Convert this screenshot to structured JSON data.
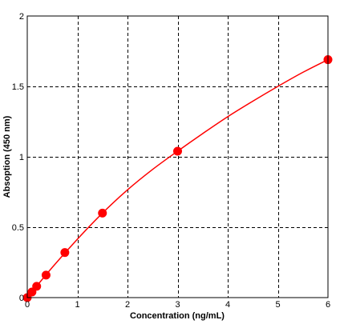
{
  "chart_data": {
    "type": "line",
    "xlabel": "Concentration (ng/mL)",
    "ylabel": "Absoption (450 nm)",
    "xlim": [
      0,
      6
    ],
    "ylim": [
      0,
      2
    ],
    "x_ticks": [
      0,
      1,
      2,
      3,
      4,
      5,
      6
    ],
    "x_tick_labels": [
      "0",
      "1",
      "2",
      "3",
      "4",
      "5",
      "6"
    ],
    "y_ticks": [
      0,
      0.5,
      1,
      1.5,
      2
    ],
    "y_tick_labels": [
      "0",
      "0.5",
      "1",
      "1.5",
      "2"
    ],
    "grid": true,
    "grid_style": "dashed",
    "series": [
      {
        "points": [
          {
            "x": 0,
            "y": 0.0
          },
          {
            "x": 0.09375,
            "y": 0.04
          },
          {
            "x": 0.1875,
            "y": 0.08
          },
          {
            "x": 0.375,
            "y": 0.16
          },
          {
            "x": 0.75,
            "y": 0.32
          },
          {
            "x": 1.5,
            "y": 0.6
          },
          {
            "x": 3,
            "y": 1.04
          },
          {
            "x": 6,
            "y": 1.69
          }
        ],
        "fit_curve": [
          {
            "x": 0,
            "y": 0.0
          },
          {
            "x": 0.5,
            "y": 0.215
          },
          {
            "x": 1,
            "y": 0.415
          },
          {
            "x": 1.5,
            "y": 0.6
          },
          {
            "x": 2,
            "y": 0.765
          },
          {
            "x": 2.5,
            "y": 0.91
          },
          {
            "x": 3,
            "y": 1.04
          },
          {
            "x": 3.5,
            "y": 1.165
          },
          {
            "x": 4,
            "y": 1.285
          },
          {
            "x": 4.5,
            "y": 1.395
          },
          {
            "x": 5,
            "y": 1.5
          },
          {
            "x": 5.5,
            "y": 1.6
          },
          {
            "x": 6,
            "y": 1.69
          }
        ],
        "color": "#ff0000"
      }
    ]
  }
}
